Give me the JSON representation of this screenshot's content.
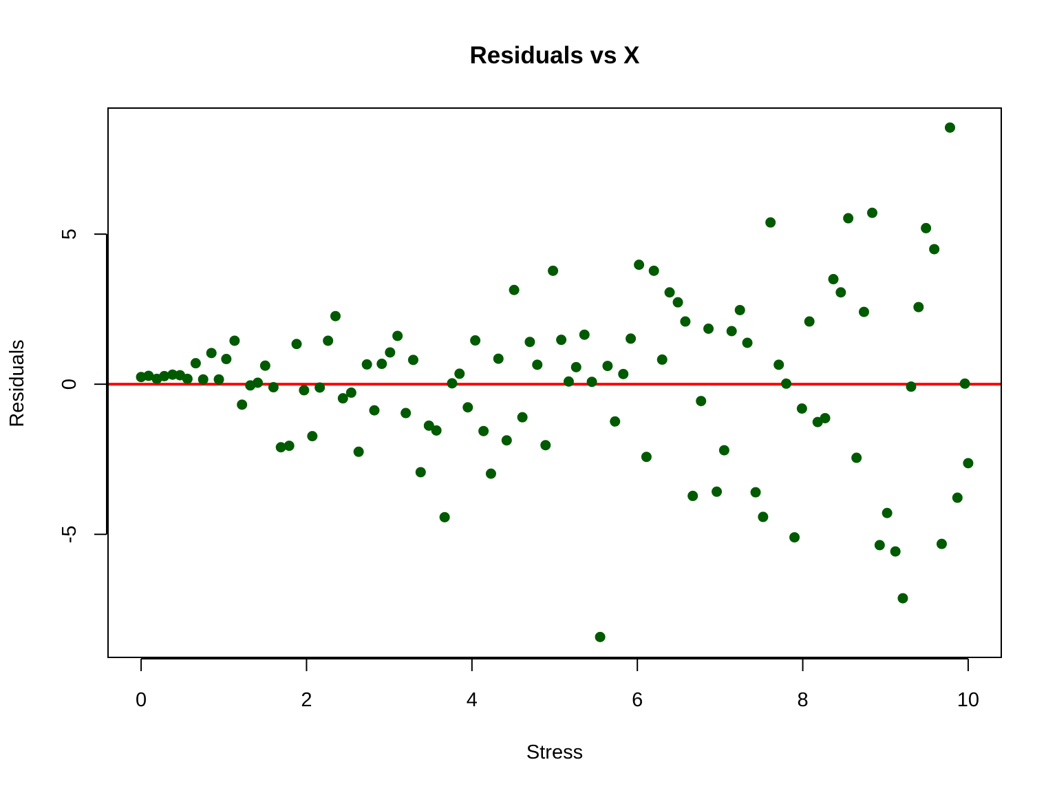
{
  "chart_data": {
    "type": "scatter",
    "title": "Residuals vs X",
    "xlabel": "Stress",
    "ylabel": "Residuals",
    "xlim": [
      -0.4,
      10.4
    ],
    "ylim": [
      -9.1,
      9.2
    ],
    "x_ticks": [
      0,
      2,
      4,
      6,
      8,
      10
    ],
    "x_tick_labels": [
      "0",
      "2",
      "4",
      "6",
      "8",
      "10"
    ],
    "y_ticks": [
      -5,
      0,
      5
    ],
    "y_tick_labels": [
      "-5",
      "0",
      "5"
    ],
    "grid": false,
    "legend": "none",
    "point_color": "#005a00",
    "reference_line": {
      "y": 0,
      "color": "#ff0000"
    },
    "x": [
      0.0,
      0.09,
      0.19,
      0.28,
      0.38,
      0.47,
      0.56,
      0.66,
      0.75,
      0.85,
      0.94,
      1.03,
      1.13,
      1.22,
      1.32,
      1.41,
      1.5,
      1.6,
      1.69,
      1.79,
      1.88,
      1.97,
      2.07,
      2.16,
      2.26,
      2.35,
      2.44,
      2.54,
      2.63,
      2.73,
      2.82,
      2.91,
      3.01,
      3.1,
      3.2,
      3.29,
      3.38,
      3.48,
      3.57,
      3.67,
      3.76,
      3.85,
      3.95,
      4.04,
      4.14,
      4.23,
      4.32,
      4.42,
      4.51,
      4.61,
      4.7,
      4.79,
      4.89,
      4.98,
      5.08,
      5.17,
      5.26,
      5.36,
      5.45,
      5.55,
      5.64,
      5.73,
      5.83,
      5.92,
      6.02,
      6.11,
      6.2,
      6.3,
      6.39,
      6.49,
      6.58,
      6.67,
      6.77,
      6.86,
      6.96,
      7.05,
      7.14,
      7.24,
      7.33,
      7.43,
      7.52,
      7.61,
      7.71,
      7.8,
      7.9,
      7.99,
      8.08,
      8.18,
      8.27,
      8.37,
      8.46,
      8.55,
      8.65,
      8.74,
      8.84,
      8.93,
      9.02,
      9.12,
      9.21,
      9.31,
      9.4,
      9.49,
      9.59,
      9.68,
      9.78,
      9.87,
      9.96,
      10.0
    ],
    "y": [
      0.24,
      0.28,
      0.18,
      0.27,
      0.32,
      0.3,
      0.18,
      0.7,
      0.16,
      1.04,
      0.16,
      0.84,
      1.45,
      -0.68,
      -0.04,
      0.05,
      0.62,
      -0.1,
      -2.1,
      -2.05,
      1.34,
      -0.2,
      -1.73,
      -0.11,
      1.45,
      2.27,
      -0.47,
      -0.28,
      -2.25,
      0.66,
      -0.87,
      0.68,
      1.06,
      1.61,
      -0.96,
      0.81,
      -2.93,
      -1.38,
      -1.54,
      -4.43,
      0.03,
      0.35,
      -0.77,
      1.46,
      -1.56,
      -2.98,
      0.85,
      -1.87,
      3.14,
      -1.1,
      1.41,
      0.65,
      -2.03,
      3.78,
      1.48,
      0.09,
      0.57,
      1.65,
      0.08,
      -8.42,
      0.61,
      -1.24,
      0.34,
      1.52,
      3.98,
      -2.42,
      3.78,
      0.82,
      3.06,
      2.73,
      2.09,
      -3.72,
      -0.56,
      1.85,
      -3.58,
      -2.2,
      1.77,
      2.47,
      1.38,
      -3.6,
      -4.42,
      5.39,
      0.65,
      0.02,
      -5.1,
      -0.81,
      2.09,
      -1.26,
      -1.13,
      3.5,
      3.06,
      5.53,
      -2.45,
      2.41,
      5.71,
      -5.36,
      -4.29,
      -5.57,
      -7.13,
      -0.08,
      2.57,
      5.2,
      4.5,
      -5.32,
      8.55,
      -3.78,
      0.02,
      -2.63
    ]
  }
}
